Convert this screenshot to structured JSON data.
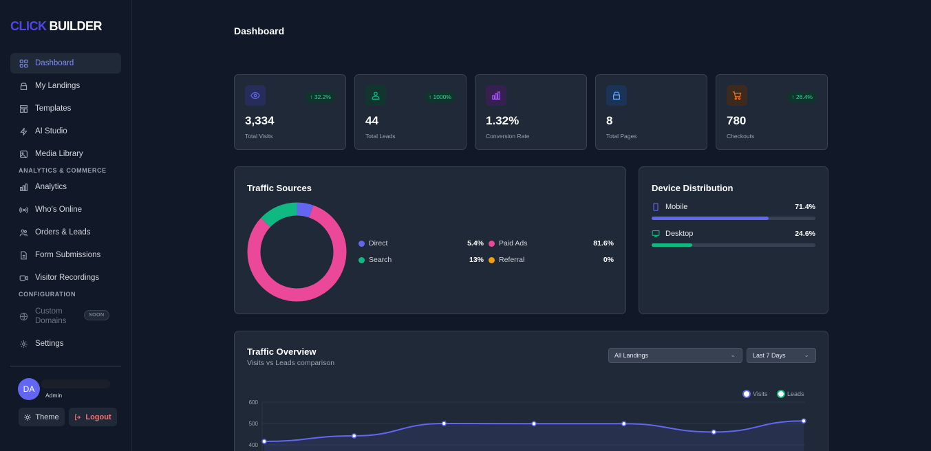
{
  "brand": {
    "part1": "CLICK",
    "part2": "BUILDER"
  },
  "sidebar": {
    "items": [
      {
        "label": "Dashboard",
        "icon": "grid-icon",
        "active": true
      },
      {
        "label": "My Landings",
        "icon": "layers-icon"
      },
      {
        "label": "Templates",
        "icon": "layout-icon"
      },
      {
        "label": "AI Studio",
        "icon": "bolt-icon"
      },
      {
        "label": "Media Library",
        "icon": "image-icon"
      }
    ],
    "section_analytics": "ANALYTICS & COMMERCE",
    "analytics_items": [
      {
        "label": "Analytics",
        "icon": "bar-chart-icon"
      },
      {
        "label": "Who's Online",
        "icon": "broadcast-icon"
      },
      {
        "label": "Orders & Leads",
        "icon": "users-icon"
      },
      {
        "label": "Form Submissions",
        "icon": "document-icon"
      },
      {
        "label": "Visitor Recordings",
        "icon": "video-icon"
      }
    ],
    "section_config": "CONFIGURATION",
    "custom_domains_line1": "Custom",
    "custom_domains_line2": "Domains",
    "soon_badge": "SOON",
    "settings_label": "Settings",
    "user": {
      "initials": "DA",
      "name": "",
      "role": "Admin"
    },
    "theme_label": "Theme",
    "logout_label": "Logout"
  },
  "page_title": "Dashboard",
  "stats": [
    {
      "value": "3,334",
      "label": "Total Visits",
      "trend": "↑ 32.2%",
      "icon": "eye-icon",
      "color": "#6366f1",
      "bg": "#272d5b"
    },
    {
      "value": "44",
      "label": "Total Leads",
      "trend": "↑ 1000%",
      "icon": "user-icon",
      "color": "#10b981",
      "bg": "#12352f"
    },
    {
      "value": "1.32%",
      "label": "Conversion Rate",
      "trend": "",
      "icon": "bar-chart-icon",
      "color": "#a855f7",
      "bg": "#35204f"
    },
    {
      "value": "8",
      "label": "Total Pages",
      "trend": "",
      "icon": "layers-icon",
      "color": "#60a5fa",
      "bg": "#1c3358"
    },
    {
      "value": "780",
      "label": "Checkouts",
      "trend": "↑ 26.4%",
      "icon": "cart-icon",
      "color": "#f97316",
      "bg": "#3d2a1f"
    }
  ],
  "traffic_sources": {
    "title": "Traffic Sources",
    "items": [
      {
        "label": "Direct",
        "pct": "5.4%",
        "value": 5.4,
        "color": "#6366f1"
      },
      {
        "label": "Paid Ads",
        "pct": "81.6%",
        "value": 81.6,
        "color": "#ec4899"
      },
      {
        "label": "Search",
        "pct": "13%",
        "value": 13,
        "color": "#10b981"
      },
      {
        "label": "Referral",
        "pct": "0%",
        "value": 0,
        "color": "#f59e0b"
      }
    ]
  },
  "device_distribution": {
    "title": "Device Distribution",
    "items": [
      {
        "label": "Mobile",
        "pct": "71.4%",
        "value": 0.714,
        "color": "#6366f1",
        "icon": "phone-icon"
      },
      {
        "label": "Desktop",
        "pct": "24.6%",
        "value": 0.246,
        "color": "#10b981",
        "icon": "monitor-icon"
      }
    ]
  },
  "traffic_overview": {
    "title": "Traffic Overview",
    "subtitle": "Visits vs Leads comparison",
    "filter_landing": "All Landings",
    "filter_range": "Last 7 Days",
    "legend_visits": "Visits",
    "legend_leads": "Leads",
    "visits_color": "#6366f1",
    "leads_color": "#10b981"
  },
  "chart_data": {
    "type": "line",
    "series": [
      {
        "name": "Visits",
        "values": [
          416,
          442,
          500,
          499,
          499,
          460,
          512
        ]
      },
      {
        "name": "Leads",
        "values": []
      }
    ],
    "y_ticks": [
      "600",
      "500",
      "400"
    ],
    "ylim": [
      400,
      600
    ],
    "grid": true,
    "legend": "top-right"
  }
}
